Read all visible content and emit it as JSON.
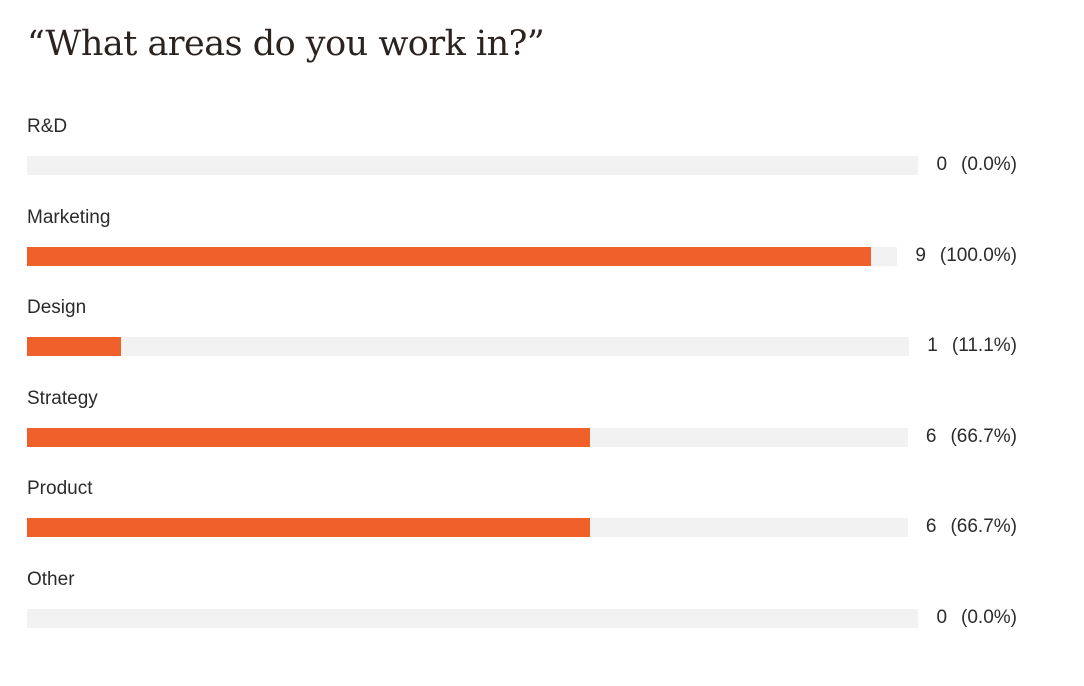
{
  "chart_data": {
    "type": "bar",
    "orientation": "horizontal",
    "title": "“What areas do you work in?”",
    "categories": [
      "R&D",
      "Marketing",
      "Design",
      "Strategy",
      "Product",
      "Other"
    ],
    "values": [
      0,
      9,
      1,
      6,
      6,
      0
    ],
    "percent_labels": [
      "(0.0%)",
      "(100.0%)",
      "(11.1%)",
      "(66.7%)",
      "(66.7%)",
      "(0.0%)"
    ],
    "xlim": [
      0,
      9
    ],
    "grid": false,
    "legend": "none",
    "colors": {
      "bar": "#f0602b",
      "track": "#f2f2f2"
    }
  }
}
